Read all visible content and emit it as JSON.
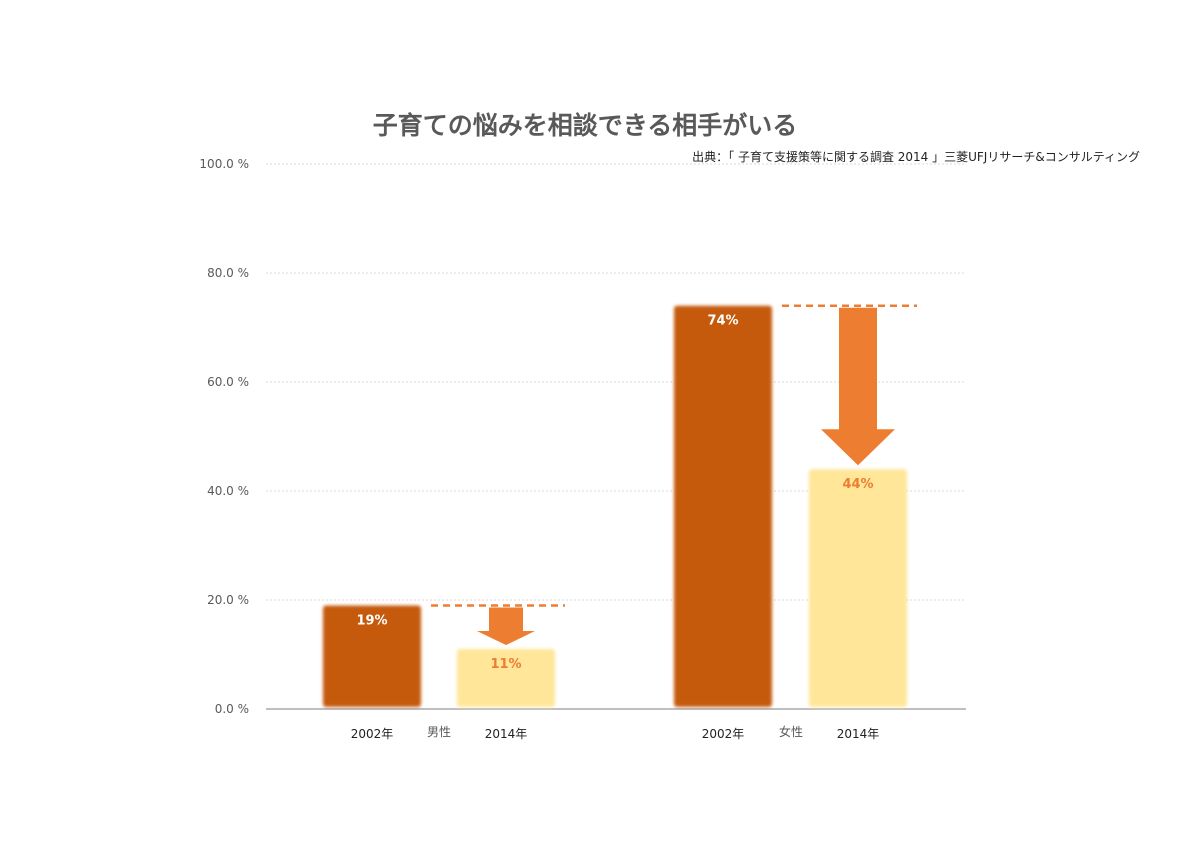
{
  "chart_data": {
    "type": "bar",
    "title": "子育ての悩みを相談できる相手がいる",
    "source_note": "出典：「 子育て支援策等に関する調査 2014 」三菱UFJリサーチ&コンサルティング",
    "ylim": [
      0,
      100
    ],
    "yticks": [
      0,
      20,
      40,
      60,
      80,
      100
    ],
    "ytick_labels": [
      "0.0 %",
      "20.0 %",
      "40.0 %",
      "60.0 %",
      "80.0 %",
      "100.0 %"
    ],
    "grid": true,
    "groups": [
      {
        "name": "男性",
        "bars": [
          {
            "category": "2002年",
            "value": 19,
            "label": "19%"
          },
          {
            "category": "2014年",
            "value": 11,
            "label": "11%"
          }
        ]
      },
      {
        "name": "女性",
        "bars": [
          {
            "category": "2002年",
            "value": 74,
            "label": "74%"
          },
          {
            "category": "2014年",
            "value": 44,
            "label": "44%"
          }
        ]
      }
    ],
    "colors": {
      "bar_2002": "#c55a11",
      "bar_2014": "#ffe699",
      "label_2002": "#ffffff",
      "label_2014": "#ed7d31",
      "arrow": "#ed7d31",
      "dashed_line": "#ed7d31",
      "grid": "#d9d9d9",
      "axis": "#bfbfbf"
    }
  }
}
